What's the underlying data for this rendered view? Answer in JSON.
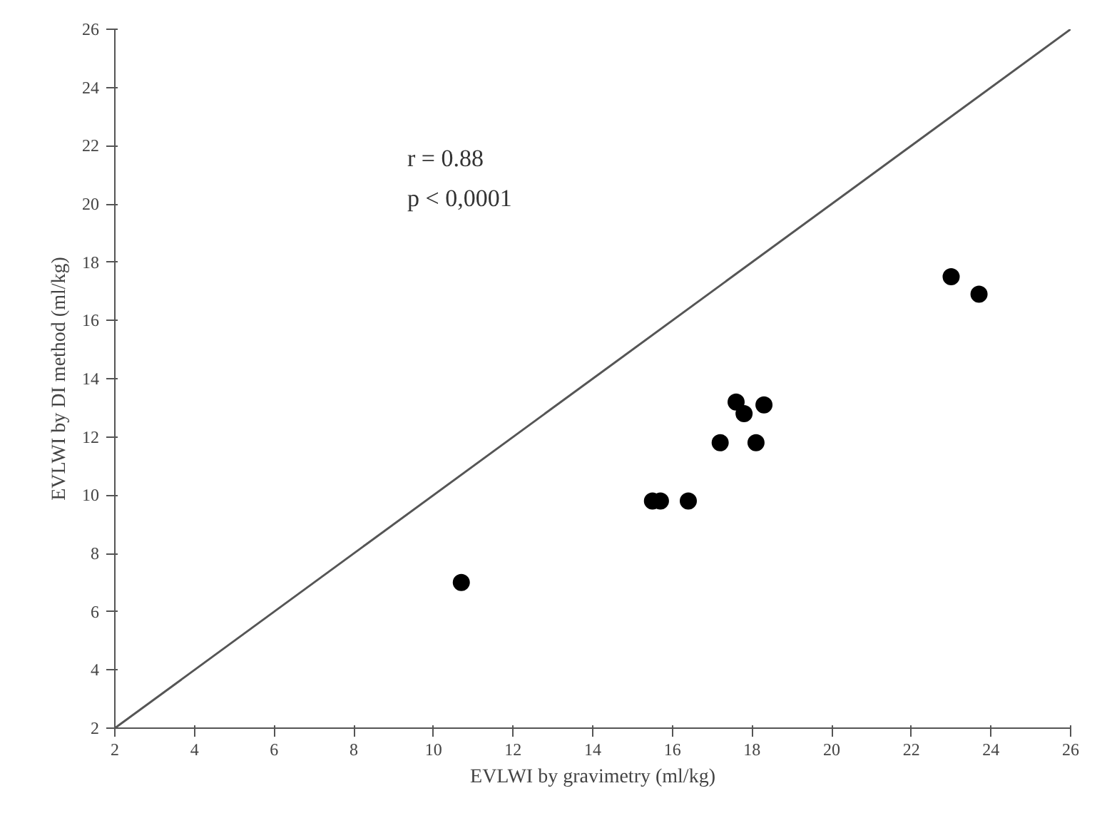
{
  "chart_data": {
    "type": "scatter",
    "xlabel": "EVLWI by gravimetry (ml/kg)",
    "ylabel": "EVLWI by DI method (ml/kg)",
    "xlim": [
      2,
      26
    ],
    "ylim": [
      2,
      26
    ],
    "xticks": [
      2,
      4,
      6,
      8,
      10,
      12,
      14,
      16,
      18,
      20,
      22,
      24,
      26
    ],
    "yticks": [
      2,
      4,
      6,
      8,
      10,
      12,
      14,
      16,
      18,
      20,
      22,
      24,
      26
    ],
    "grid": false,
    "series": [
      {
        "marker": "circle",
        "color": "#000000",
        "x": [
          10.7,
          15.5,
          15.7,
          16.4,
          17.2,
          18.1,
          17.6,
          17.8,
          18.3,
          23.0,
          23.7
        ],
        "values": [
          7.0,
          9.8,
          9.8,
          9.8,
          11.8,
          11.8,
          13.2,
          12.8,
          13.1,
          17.5,
          16.9
        ]
      },
      {
        "type": "line",
        "color": "#555555",
        "line_style": "solid",
        "x": [
          2,
          26
        ],
        "values": [
          2,
          26
        ]
      }
    ],
    "annotations": [
      "r = 0.88",
      "p < 0,0001"
    ]
  }
}
